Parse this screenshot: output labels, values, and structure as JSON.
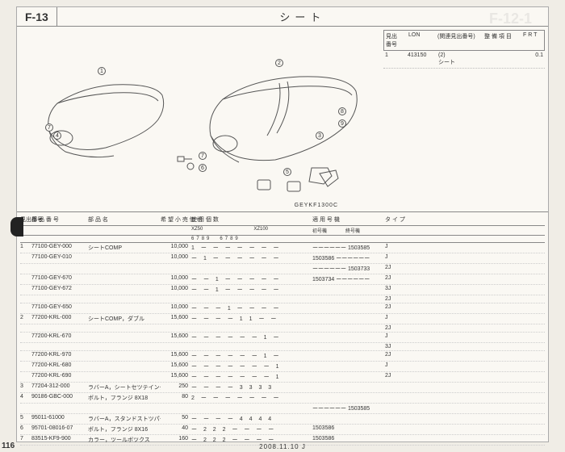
{
  "header": {
    "code": "F-13",
    "title": "シート"
  },
  "ghost": "F-12-1",
  "side_table": {
    "h": [
      "見出番号",
      "LON",
      "(関連見出番号)",
      "整 備 項 目",
      "F R T"
    ],
    "rows": [
      {
        "no": "1",
        "part": "413150",
        "desc": "(2)\nシート",
        "frt": "0.1"
      }
    ]
  },
  "diagram_code": "GEYKF1300C",
  "callouts": [
    "1",
    "2",
    "3",
    "4",
    "5",
    "6",
    "7",
    "8",
    "9"
  ],
  "main_header": {
    "h1": [
      "見出番号",
      "部 品 番 号",
      "部 品 名",
      "希 望 小 売 価 格",
      "使 用 個 数",
      "適 用 号 機",
      "タ イ プ",
      ""
    ],
    "h2_models": [
      "XZ50",
      "XZ100"
    ],
    "h2_cols": [
      "6",
      "7",
      "8",
      "9",
      "6",
      "7",
      "8",
      "9"
    ],
    "h2_serial": [
      "初号機",
      "終号機"
    ]
  },
  "rows": [
    {
      "n": "1",
      "pn": "77100-GEY-000",
      "name": "シートCOMP",
      "price": "10,000",
      "use": "1 ー ー ー ー ー ー ー",
      "serial": "ーーーーーー 1503585",
      "type": "J"
    },
    {
      "n": "",
      "pn": "77100-GEY-010",
      "name": "",
      "price": "10,000",
      "use": "ー 1 ー ー ー ー ー ー",
      "serial": "1503586 ーーーーーー",
      "type": "J"
    },
    {
      "n": "",
      "pn": "",
      "name": "",
      "price": "",
      "use": "",
      "serial": "ーーーーーー 1503733",
      "type": "2J"
    },
    {
      "n": "",
      "pn": "77100-GEY-670",
      "name": "",
      "price": "10,000",
      "use": "ー ー 1 ー ー ー ー ー",
      "serial": "1503734 ーーーーーー",
      "type": "2J"
    },
    {
      "n": "",
      "pn": "77100-GEY-672",
      "name": "",
      "price": "10,000",
      "use": "ー ー 1 ー ー ー ー ー",
      "serial": "",
      "type": "3J"
    },
    {
      "n": "",
      "pn": "",
      "name": "",
      "price": "",
      "use": "",
      "serial": "",
      "type": "2J"
    },
    {
      "n": "",
      "pn": "77100-GEY-650",
      "name": "",
      "price": "10,000",
      "use": "ー ー ー 1 ー ー ー ー",
      "serial": "",
      "type": "2J"
    },
    {
      "n": "2",
      "pn": "77200-KRL-000",
      "name": "シートCOMP，ダブル",
      "price": "15,600",
      "use": "ー ー ー ー 1 1 ー ー",
      "serial": "",
      "type": "J"
    },
    {
      "n": "",
      "pn": "",
      "name": "",
      "price": "",
      "use": "",
      "serial": "",
      "type": "2J"
    },
    {
      "n": "",
      "pn": "77200-KRL-670",
      "name": "",
      "price": "15,600",
      "use": "ー ー ー ー ー ー 1 ー",
      "serial": "",
      "type": "J"
    },
    {
      "n": "",
      "pn": "",
      "name": "",
      "price": "",
      "use": "",
      "serial": "",
      "type": "3J"
    },
    {
      "n": "",
      "pn": "77200-KRL-970",
      "name": "",
      "price": "15,600",
      "use": "ー ー ー ー ー ー 1 ー",
      "serial": "",
      "type": "2J"
    },
    {
      "n": "",
      "pn": "77200-KRL-680",
      "name": "",
      "price": "15,600",
      "use": "ー ー ー ー ー ー ー 1",
      "serial": "",
      "type": "J"
    },
    {
      "n": "",
      "pn": "77200-KRL-690",
      "name": "",
      "price": "15,600",
      "use": "ー ー ー ー ー ー ー 1",
      "serial": "",
      "type": "2J"
    },
    {
      "n": "3",
      "pn": "77204-312-000",
      "name": "ラバーA，シートセツテイング",
      "price": "250",
      "use": "ー ー ー ー 3 3 3 3",
      "serial": "",
      "type": ""
    },
    {
      "n": "4",
      "pn": "90186-GBC-000",
      "name": "ボルト，フランジ 8X18",
      "price": "80",
      "use": "2 ー ー ー ー ー ー ー",
      "serial": "",
      "type": ""
    },
    {
      "n": "",
      "pn": "",
      "name": "",
      "price": "",
      "use": "",
      "serial": "ーーーーーー 1503585",
      "type": ""
    },
    {
      "n": "5",
      "pn": "95011-61000",
      "name": "ラバーA，スタンドストツパー",
      "price": "50",
      "use": "ー ー ー ー 4 4 4 4",
      "serial": "",
      "type": ""
    },
    {
      "n": "6",
      "pn": "95701-08016-07",
      "name": "ボルト，フランジ 8X16",
      "price": "40",
      "use": "ー 2 2 2 ー ー ー ー",
      "serial": "1503586",
      "type": ""
    },
    {
      "n": "7",
      "pn": "83515-KF9-900",
      "name": "カラー，ツールボツクス",
      "price": "160",
      "use": "ー 2 2 2 ー ー ー ー",
      "serial": "1503586",
      "type": ""
    }
  ],
  "page_num": "116",
  "footer_date": "2008.11.10      J"
}
